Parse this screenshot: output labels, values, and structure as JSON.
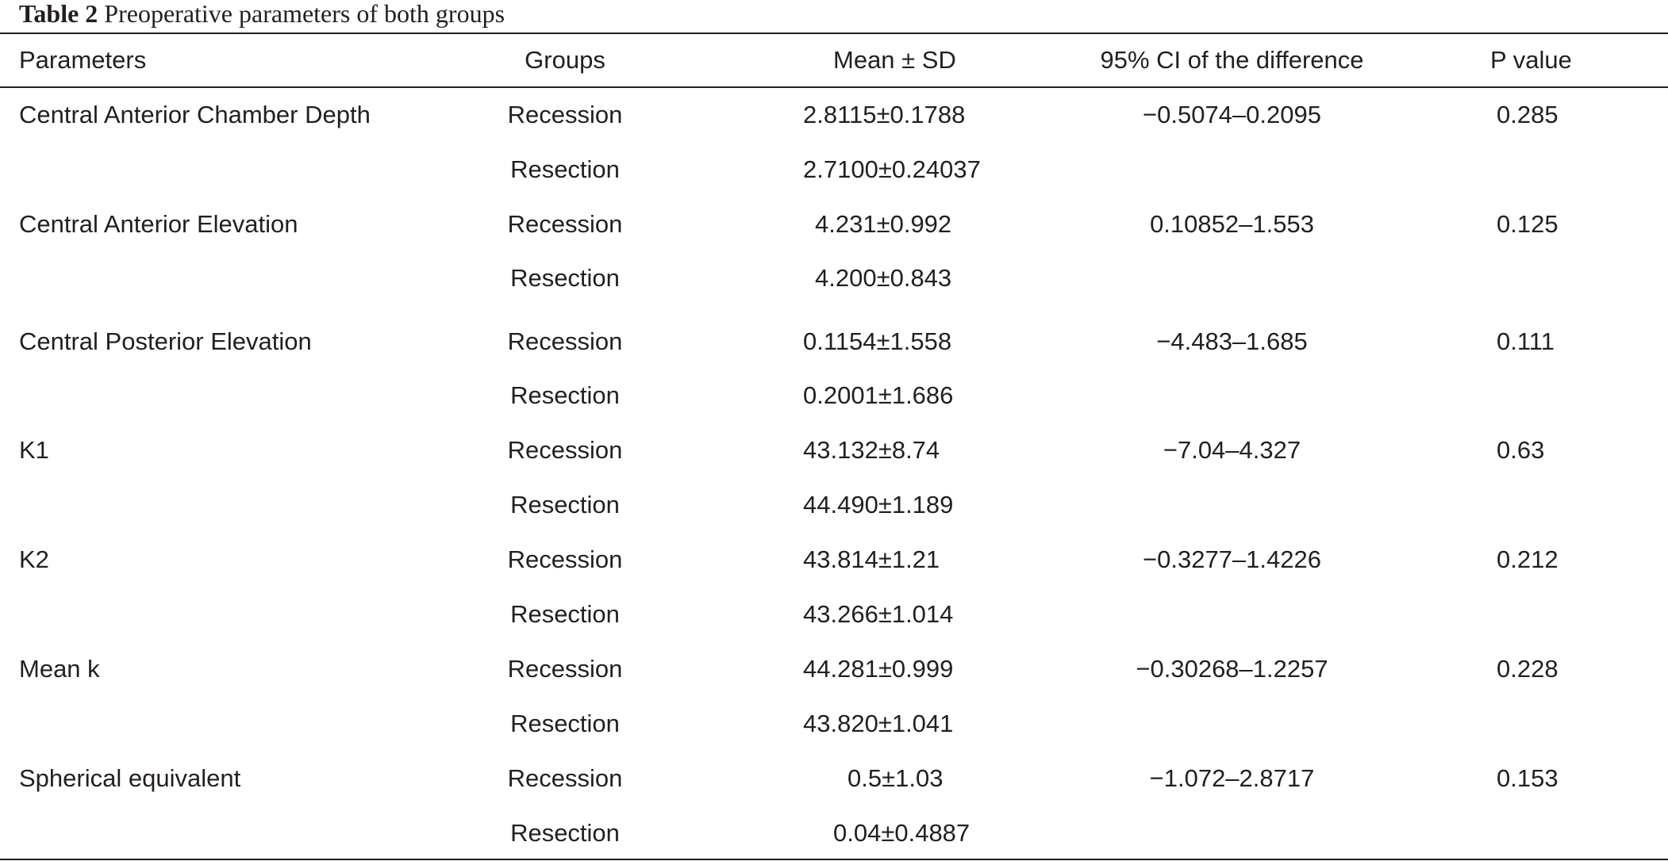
{
  "caption": {
    "label": "Table 2",
    "title": "Preoperative parameters of both groups"
  },
  "headers": {
    "parameters": "Parameters",
    "groups": "Groups",
    "mean_sd": "Mean ± SD",
    "ci": "95% CI of the difference",
    "p_value": "P value"
  },
  "rows": [
    {
      "parameter": "Central Anterior Chamber Depth",
      "group": "Recession",
      "mean_sd": "2.8115±0.1788",
      "ci": "−0.5074–0.2095",
      "p": "0.285"
    },
    {
      "parameter": "",
      "group": "Resection",
      "mean_sd": "2.7100±0.24037",
      "ci": "",
      "p": ""
    },
    {
      "parameter": "Central Anterior Elevation",
      "group": "Recession",
      "mean_sd": "4.231±0.992",
      "ci": "0.10852–1.553",
      "p": "0.125"
    },
    {
      "parameter": "",
      "group": "Resection",
      "mean_sd": "4.200±0.843",
      "ci": "",
      "p": ""
    },
    {
      "parameter": "Central Posterior Elevation",
      "group": "Recession",
      "mean_sd": "0.1154±1.558",
      "ci": "−4.483–1.685",
      "p": "0.111"
    },
    {
      "parameter": "",
      "group": "Resection",
      "mean_sd": "0.2001±1.686",
      "ci": "",
      "p": ""
    },
    {
      "parameter": "K1",
      "group": "Recession",
      "mean_sd": "43.132±8.74",
      "ci": "−7.04–4.327",
      "p": "0.63"
    },
    {
      "parameter": "",
      "group": "Resection",
      "mean_sd": "44.490±1.189",
      "ci": "",
      "p": ""
    },
    {
      "parameter": "K2",
      "group": "Recession",
      "mean_sd": "43.814±1.21",
      "ci": "−0.3277–1.4226",
      "p": "0.212"
    },
    {
      "parameter": "",
      "group": "Resection",
      "mean_sd": "43.266±1.014",
      "ci": "",
      "p": ""
    },
    {
      "parameter": "Mean k",
      "group": "Recession",
      "mean_sd": "44.281±0.999",
      "ci": "−0.30268–1.2257",
      "p": "0.228"
    },
    {
      "parameter": "",
      "group": "Resection",
      "mean_sd": "43.820±1.041",
      "ci": "",
      "p": ""
    },
    {
      "parameter": "Spherical equivalent",
      "group": "Recession",
      "mean_sd": "0.5±1.03",
      "ci": "−1.072–2.8717",
      "p": "0.153"
    },
    {
      "parameter": "",
      "group": "Resection",
      "mean_sd": "0.04±0.4887",
      "ci": "",
      "p": ""
    }
  ]
}
